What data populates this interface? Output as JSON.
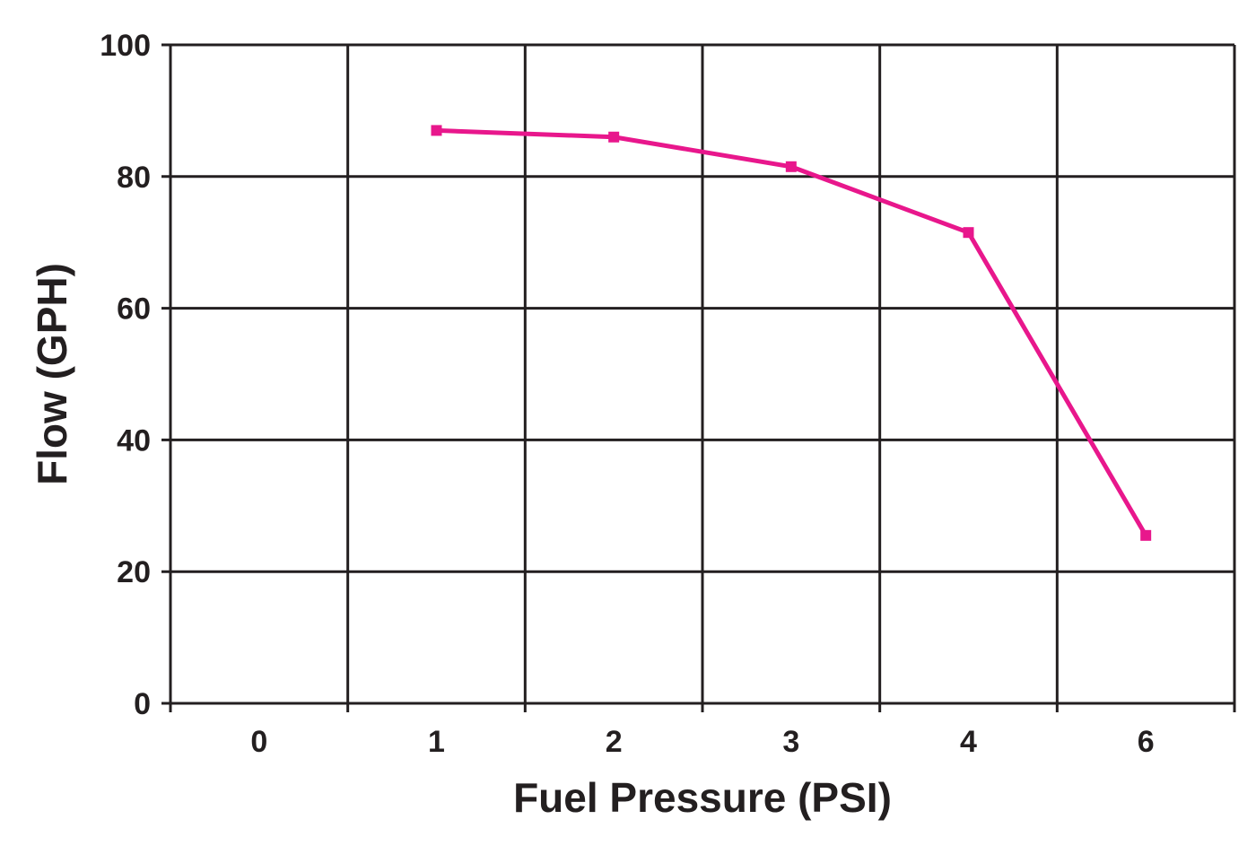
{
  "chart_data": {
    "type": "line",
    "title": "",
    "xlabel": "Fuel Pressure (PSI)",
    "ylabel": "Flow (GPH)",
    "categories": [
      "0",
      "1",
      "2",
      "3",
      "4",
      "6"
    ],
    "ylim": [
      0,
      100
    ],
    "yticks": [
      "0",
      "20",
      "40",
      "60",
      "80",
      "100"
    ],
    "grid": true,
    "series": [
      {
        "name": "Flow",
        "color": "#e8178c",
        "points": [
          {
            "x": "1",
            "y": 87
          },
          {
            "x": "2",
            "y": 86
          },
          {
            "x": "3",
            "y": 81.5
          },
          {
            "x": "4",
            "y": 71.5
          },
          {
            "x": "6",
            "y": 25.5
          }
        ]
      }
    ]
  }
}
